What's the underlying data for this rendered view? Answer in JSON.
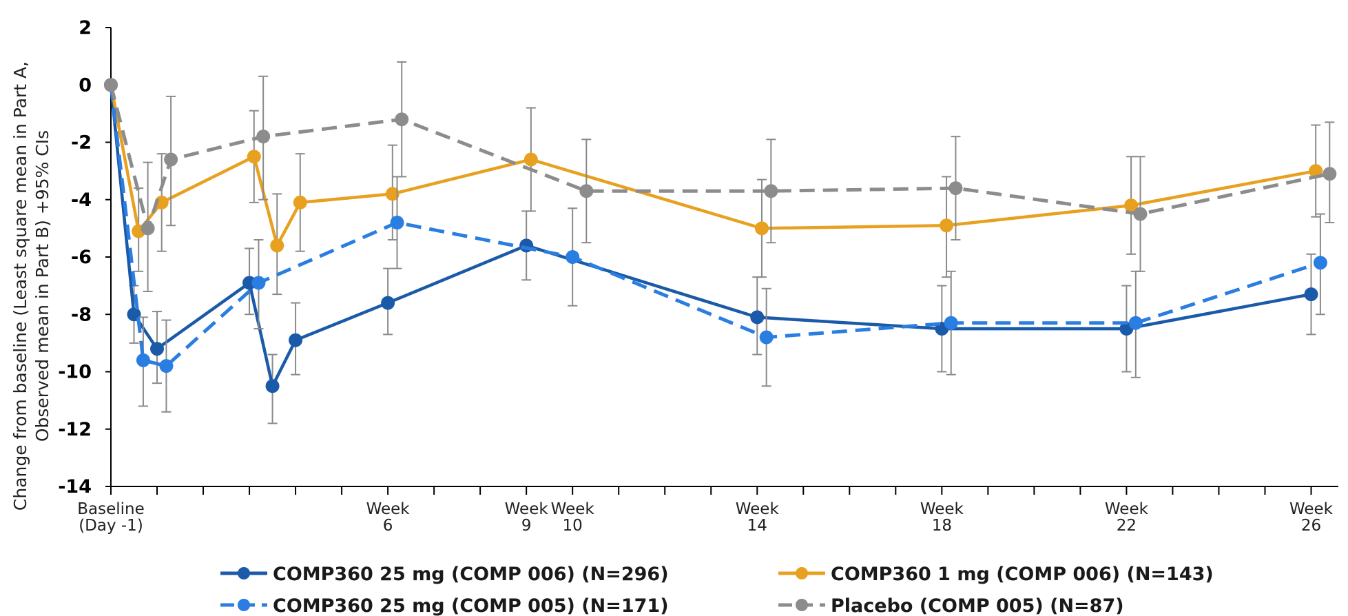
{
  "chart_data": {
    "type": "line",
    "title": "",
    "ylabel": [
      "Change from baseline (Least square mean in Part A,",
      "Observed mean in Part B) +95% CIs"
    ],
    "xlabel": "",
    "ylim": [
      -14,
      2
    ],
    "yticks": [
      2,
      0,
      -2,
      -4,
      -6,
      -8,
      -10,
      -12,
      -14
    ],
    "xlim": [
      0,
      26.5
    ],
    "x_axis_unit": "weeks",
    "x_tick_labels": [
      {
        "x": 0,
        "lines": [
          "Baseline",
          "(Day -1)"
        ]
      },
      {
        "x": 6,
        "lines": [
          "Week",
          "6"
        ]
      },
      {
        "x": 9,
        "lines": [
          "Week",
          "9"
        ]
      },
      {
        "x": 10,
        "lines": [
          "Week",
          "10"
        ]
      },
      {
        "x": 14,
        "lines": [
          "Week",
          "14"
        ]
      },
      {
        "x": 18,
        "lines": [
          "Week",
          "18"
        ]
      },
      {
        "x": 22,
        "lines": [
          "Week",
          "22"
        ]
      },
      {
        "x": 26,
        "lines": [
          "Week",
          "26"
        ]
      }
    ],
    "minor_ticks": [
      0,
      1,
      2,
      3,
      4,
      5,
      6,
      7,
      8,
      9,
      10,
      11,
      12,
      13,
      14,
      15,
      16,
      17,
      18,
      19,
      20,
      21,
      22,
      23,
      24,
      25,
      26
    ],
    "grid": false,
    "legend_position": "bottom",
    "series": [
      {
        "name": "COMP360 25 mg (COMP 006) (N=296)",
        "color": "#1a5aa8",
        "dashed": false,
        "points": [
          {
            "x": 0,
            "y": 0,
            "lo": 0,
            "hi": 0
          },
          {
            "x": 0.5,
            "y": -8.0,
            "lo": -9.0,
            "hi": -7.0
          },
          {
            "x": 1.0,
            "y": -9.2,
            "lo": -10.4,
            "hi": -7.9
          },
          {
            "x": 3.0,
            "y": -6.9,
            "lo": -8.0,
            "hi": -5.7
          },
          {
            "x": 3.5,
            "y": -10.5,
            "lo": -11.8,
            "hi": -9.4
          },
          {
            "x": 4.0,
            "y": -8.9,
            "lo": -10.1,
            "hi": -7.6
          },
          {
            "x": 6.0,
            "y": -7.6,
            "lo": -8.7,
            "hi": -6.4
          },
          {
            "x": 9.0,
            "y": -5.6,
            "lo": -6.8,
            "hi": -4.4
          },
          {
            "x": 14.0,
            "y": -8.1,
            "lo": -9.4,
            "hi": -6.7
          },
          {
            "x": 18.0,
            "y": -8.5,
            "lo": -10.0,
            "hi": -7.0
          },
          {
            "x": 22.0,
            "y": -8.5,
            "lo": -10.0,
            "hi": -7.0
          },
          {
            "x": 26.0,
            "y": -7.3,
            "lo": -8.7,
            "hi": -5.9
          }
        ]
      },
      {
        "name": "COMP360 1 mg (COMP 006) (N=143)",
        "color": "#e8a020",
        "dashed": false,
        "points": [
          {
            "x": 0,
            "y": 0,
            "lo": 0,
            "hi": 0
          },
          {
            "x": 0.6,
            "y": -5.1,
            "lo": -6.5,
            "hi": -3.6
          },
          {
            "x": 1.1,
            "y": -4.1,
            "lo": -5.8,
            "hi": -2.4
          },
          {
            "x": 3.1,
            "y": -2.5,
            "lo": -4.1,
            "hi": -0.9
          },
          {
            "x": 3.6,
            "y": -5.6,
            "lo": -7.3,
            "hi": -3.8
          },
          {
            "x": 4.1,
            "y": -4.1,
            "lo": -5.8,
            "hi": -2.4
          },
          {
            "x": 6.1,
            "y": -3.8,
            "lo": -5.4,
            "hi": -2.1
          },
          {
            "x": 9.1,
            "y": -2.6,
            "lo": -4.4,
            "hi": -0.8
          },
          {
            "x": 14.1,
            "y": -5.0,
            "lo": -6.7,
            "hi": -3.3
          },
          {
            "x": 18.1,
            "y": -4.9,
            "lo": -6.7,
            "hi": -3.2
          },
          {
            "x": 22.1,
            "y": -4.2,
            "lo": -5.9,
            "hi": -2.5
          },
          {
            "x": 26.1,
            "y": -3.0,
            "lo": -4.6,
            "hi": -1.4
          }
        ]
      },
      {
        "name": "COMP360 25 mg (COMP 005) (N=171)",
        "color": "#2a7de1",
        "dashed": true,
        "points": [
          {
            "x": 0,
            "y": 0,
            "lo": 0,
            "hi": 0
          },
          {
            "x": 0.7,
            "y": -9.6,
            "lo": -11.2,
            "hi": -8.1
          },
          {
            "x": 1.2,
            "y": -9.8,
            "lo": -11.4,
            "hi": -8.2
          },
          {
            "x": 3.2,
            "y": -6.9,
            "lo": -8.5,
            "hi": -5.4
          },
          {
            "x": 6.2,
            "y": -4.8,
            "lo": -6.4,
            "hi": -3.2
          },
          {
            "x": 10.0,
            "y": -6.0,
            "lo": -7.7,
            "hi": -4.3
          },
          {
            "x": 14.2,
            "y": -8.8,
            "lo": -10.5,
            "hi": -7.1
          },
          {
            "x": 18.2,
            "y": -8.3,
            "lo": -10.1,
            "hi": -6.5
          },
          {
            "x": 22.2,
            "y": -8.3,
            "lo": -10.2,
            "hi": -6.5
          },
          {
            "x": 26.2,
            "y": -6.2,
            "lo": -8.0,
            "hi": -4.5
          }
        ]
      },
      {
        "name": "Placebo (COMP 005) (N=87)",
        "color": "#8c8c8c",
        "dashed": true,
        "points": [
          {
            "x": 0,
            "y": 0,
            "lo": 0,
            "hi": 0
          },
          {
            "x": 0.8,
            "y": -5.0,
            "lo": -7.2,
            "hi": -2.7
          },
          {
            "x": 1.3,
            "y": -2.6,
            "lo": -4.9,
            "hi": -0.4
          },
          {
            "x": 3.3,
            "y": -1.8,
            "lo": -4.0,
            "hi": 0.3
          },
          {
            "x": 6.3,
            "y": -1.2,
            "lo": -3.2,
            "hi": 0.8
          },
          {
            "x": 10.3,
            "y": -3.7,
            "lo": -5.5,
            "hi": -1.9
          },
          {
            "x": 14.3,
            "y": -3.7,
            "lo": -5.5,
            "hi": -1.9
          },
          {
            "x": 18.3,
            "y": -3.6,
            "lo": -5.4,
            "hi": -1.8
          },
          {
            "x": 22.3,
            "y": -4.5,
            "lo": -6.5,
            "hi": -2.5
          },
          {
            "x": 26.4,
            "y": -3.1,
            "lo": -4.8,
            "hi": -1.3
          }
        ]
      }
    ]
  }
}
